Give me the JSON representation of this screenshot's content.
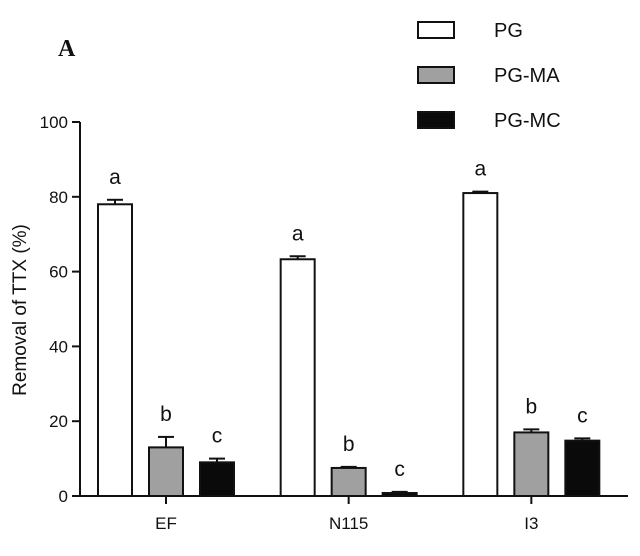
{
  "panel_label": "A",
  "chart_data": {
    "type": "bar",
    "title": "",
    "xlabel": "",
    "ylabel": "Removal of TTX (%)",
    "ylim": [
      0,
      100
    ],
    "yticks": [
      "0",
      "20",
      "40",
      "60",
      "80",
      "100"
    ],
    "categories": [
      "EF",
      "N115",
      "I3"
    ],
    "legend_position": "top-right",
    "series": [
      {
        "name": "PG",
        "color": "#ffffff",
        "values": [
          78,
          63.3,
          81
        ],
        "errors": [
          1.2,
          0.8,
          0.4
        ],
        "labels": [
          "a",
          "a",
          "a"
        ]
      },
      {
        "name": "PG-MA",
        "color": "#a0a0a0",
        "values": [
          13,
          7.5,
          17
        ],
        "errors": [
          2.8,
          0.3,
          0.8
        ],
        "labels": [
          "b",
          "b",
          "b"
        ]
      },
      {
        "name": "PG-MC",
        "color": "#0a0a0a",
        "values": [
          9,
          0.8,
          14.8
        ],
        "errors": [
          1,
          0.3,
          0.6
        ],
        "labels": [
          "c",
          "c",
          "c"
        ]
      }
    ]
  }
}
